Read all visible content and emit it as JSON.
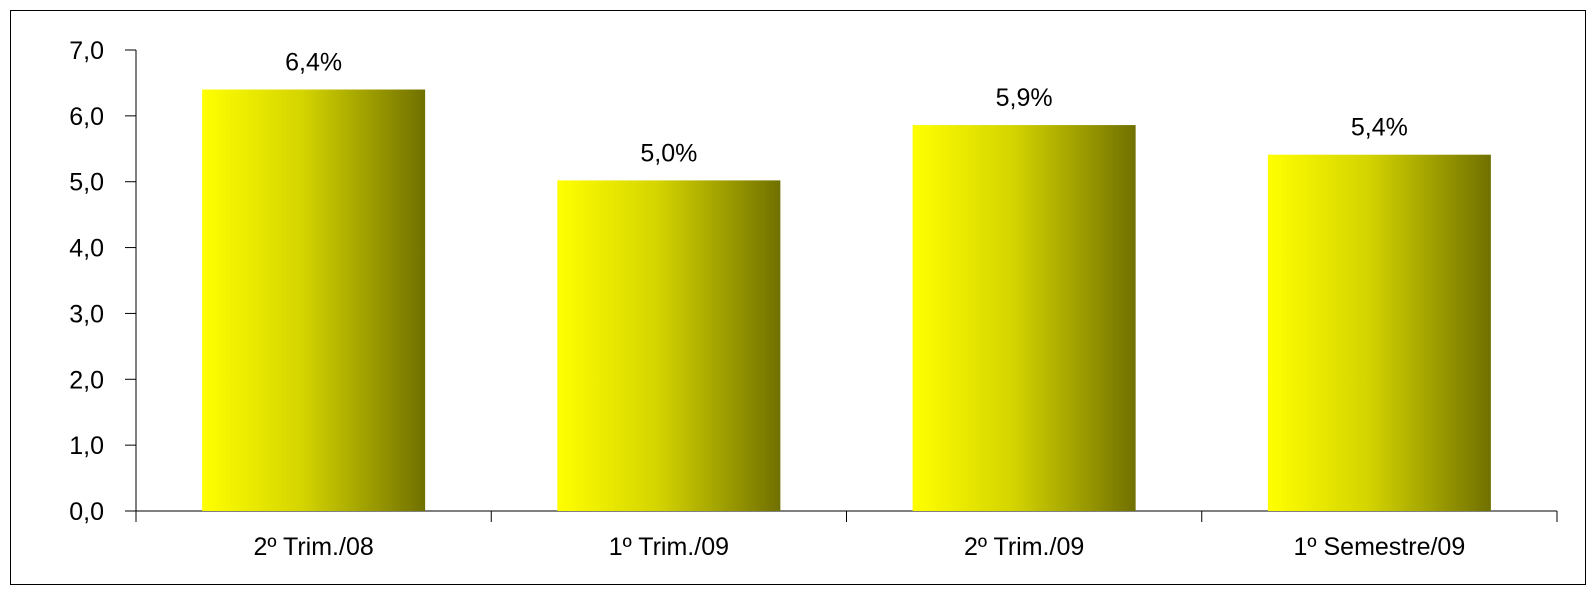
{
  "chart_data": {
    "type": "bar",
    "categories": [
      "2º Trim./08",
      "1º Trim./09",
      "2º Trim./09",
      "1º Semestre/09"
    ],
    "values": [
      6.4,
      5.02,
      5.86,
      5.41
    ],
    "data_labels": [
      "6,4%",
      "5,0%",
      "5,9%",
      "5,4%"
    ],
    "y_tick_values": [
      0,
      1,
      2,
      3,
      4,
      5,
      6,
      7
    ],
    "y_tick_labels": [
      "0,0",
      "1,0",
      "2,0",
      "3,0",
      "4,0",
      "5,0",
      "6,0",
      "7,0"
    ],
    "ylim": [
      0,
      7
    ],
    "title": "",
    "xlabel": "",
    "ylabel": "",
    "grid": false,
    "legend": "none",
    "colors": {
      "bar_light": "#ffff00",
      "bar_mid": "#d4d400",
      "bar_dark": "#707000",
      "axis": "#000000",
      "text": "#000000"
    }
  }
}
